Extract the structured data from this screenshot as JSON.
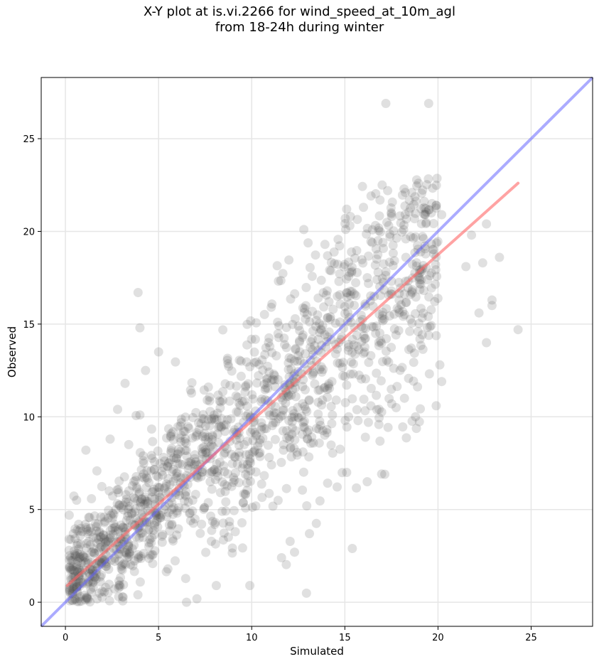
{
  "chart_data": {
    "type": "scatter",
    "title_line1": "X-Y plot at is.vi.2266 for wind_speed_at_10m_agl",
    "title_line2": "from 18-24h during winter",
    "xlabel": "Simulated",
    "ylabel": "Observed",
    "xlim": [
      -1.3,
      28.3
    ],
    "ylim": [
      -1.3,
      28.3
    ],
    "xticks": [
      0,
      5,
      10,
      15,
      20,
      25
    ],
    "yticks": [
      0,
      5,
      10,
      15,
      20,
      25
    ],
    "grid": true,
    "points_color": "#555555",
    "points_alpha": 0.18,
    "identity_line": {
      "x": [
        -1.3,
        28.3
      ],
      "y": [
        -1.3,
        28.3
      ],
      "color": "#6666ff"
    },
    "fit_line": {
      "x": [
        0.1,
        24.3
      ],
      "y": [
        0.9,
        22.6
      ],
      "color": "#ff6666"
    },
    "outlier_points": [
      {
        "x": 17.2,
        "y": 26.9
      },
      {
        "x": 19.5,
        "y": 26.9
      },
      {
        "x": 17.0,
        "y": 22.5
      },
      {
        "x": 17.3,
        "y": 22.2
      },
      {
        "x": 18.6,
        "y": 22.1
      },
      {
        "x": 19.9,
        "y": 21.4
      },
      {
        "x": 20.2,
        "y": 20.9
      },
      {
        "x": 22.6,
        "y": 20.4
      },
      {
        "x": 21.8,
        "y": 19.8
      },
      {
        "x": 15.1,
        "y": 21.2
      },
      {
        "x": 16.0,
        "y": 21.3
      },
      {
        "x": 15.3,
        "y": 20.8
      },
      {
        "x": 12.8,
        "y": 20.1
      },
      {
        "x": 24.3,
        "y": 14.7
      },
      {
        "x": 23.3,
        "y": 18.6
      },
      {
        "x": 22.4,
        "y": 18.3
      },
      {
        "x": 21.5,
        "y": 18.1
      },
      {
        "x": 22.9,
        "y": 16.3
      },
      {
        "x": 22.9,
        "y": 16.0
      },
      {
        "x": 22.2,
        "y": 15.6
      },
      {
        "x": 22.6,
        "y": 14.0
      },
      {
        "x": 20.1,
        "y": 12.8
      },
      {
        "x": 20.2,
        "y": 11.9
      },
      {
        "x": 18.2,
        "y": 11.0
      },
      {
        "x": 15.2,
        "y": 10.0
      },
      {
        "x": 16.1,
        "y": 8.9
      },
      {
        "x": 16.2,
        "y": 6.5
      },
      {
        "x": 15.1,
        "y": 7.0
      },
      {
        "x": 15.4,
        "y": 2.9
      },
      {
        "x": 13.1,
        "y": 3.7
      },
      {
        "x": 12.3,
        "y": 2.7
      },
      {
        "x": 11.6,
        "y": 2.4
      },
      {
        "x": 9.9,
        "y": 0.9
      },
      {
        "x": 8.1,
        "y": 0.9
      },
      {
        "x": 6.5,
        "y": 0.0
      },
      {
        "x": 3.9,
        "y": 16.7
      },
      {
        "x": 4.0,
        "y": 14.8
      },
      {
        "x": 4.3,
        "y": 12.5
      },
      {
        "x": 3.2,
        "y": 11.8
      },
      {
        "x": 2.8,
        "y": 10.4
      },
      {
        "x": 4.0,
        "y": 10.1
      },
      {
        "x": 5.0,
        "y": 13.5
      },
      {
        "x": 1.1,
        "y": 8.2
      },
      {
        "x": 2.4,
        "y": 8.8
      },
      {
        "x": 3.4,
        "y": 8.5
      },
      {
        "x": 0.2,
        "y": 2.8
      },
      {
        "x": 0.2,
        "y": 3.4
      },
      {
        "x": 0.6,
        "y": 5.5
      }
    ]
  }
}
